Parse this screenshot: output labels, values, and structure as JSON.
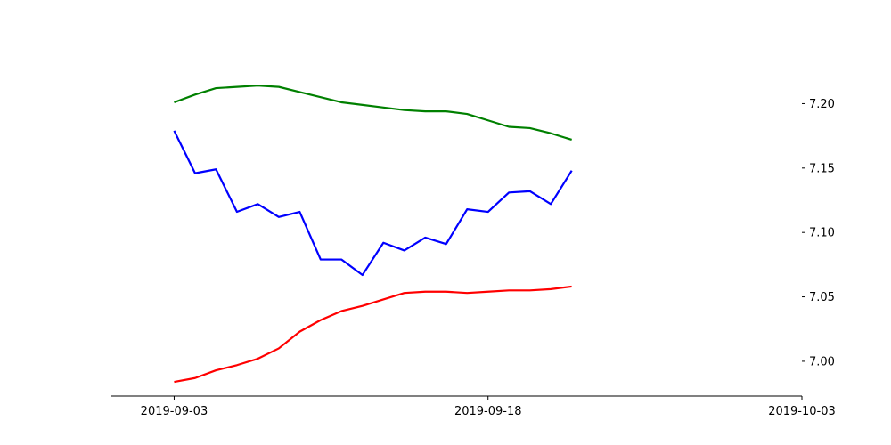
{
  "chart_data": {
    "type": "line",
    "title": "",
    "xlabel": "",
    "ylabel": "",
    "x": [
      "2019-09-03",
      "2019-09-04",
      "2019-09-05",
      "2019-09-06",
      "2019-09-07",
      "2019-09-08",
      "2019-09-09",
      "2019-09-10",
      "2019-09-11",
      "2019-09-12",
      "2019-09-13",
      "2019-09-14",
      "2019-09-15",
      "2019-09-16",
      "2019-09-17",
      "2019-09-18",
      "2019-09-19",
      "2019-09-20",
      "2019-09-21",
      "2019-09-22"
    ],
    "xlim": [
      "2019-08-31",
      "2019-10-03"
    ],
    "xticks": [
      "2019-09-03",
      "2019-09-18",
      "2019-10-03"
    ],
    "ylim": [
      6.973,
      7.239
    ],
    "yticks": [
      7.0,
      7.05,
      7.1,
      7.15,
      7.2
    ],
    "ytick_labels": [
      "7.00",
      "7.05",
      "7.10",
      "7.15",
      "7.20"
    ],
    "y_axis_position": "right",
    "grid": false,
    "legend": "none",
    "series": [
      {
        "color": "#008000",
        "values": [
          7.201,
          7.207,
          7.212,
          7.213,
          7.214,
          7.213,
          7.209,
          7.205,
          7.201,
          7.199,
          7.197,
          7.195,
          7.194,
          7.194,
          7.192,
          7.187,
          7.182,
          7.181,
          7.177,
          7.172
        ]
      },
      {
        "color": "#0000ff",
        "values": [
          7.179,
          7.146,
          7.149,
          7.116,
          7.122,
          7.112,
          7.116,
          7.079,
          7.079,
          7.067,
          7.092,
          7.086,
          7.096,
          7.091,
          7.118,
          7.116,
          7.131,
          7.132,
          7.122,
          7.148
        ]
      },
      {
        "color": "#ff0000",
        "values": [
          6.984,
          6.987,
          6.993,
          6.997,
          7.002,
          7.01,
          7.023,
          7.032,
          7.039,
          7.043,
          7.048,
          7.053,
          7.054,
          7.054,
          7.053,
          7.054,
          7.055,
          7.055,
          7.056,
          7.058
        ]
      }
    ]
  }
}
